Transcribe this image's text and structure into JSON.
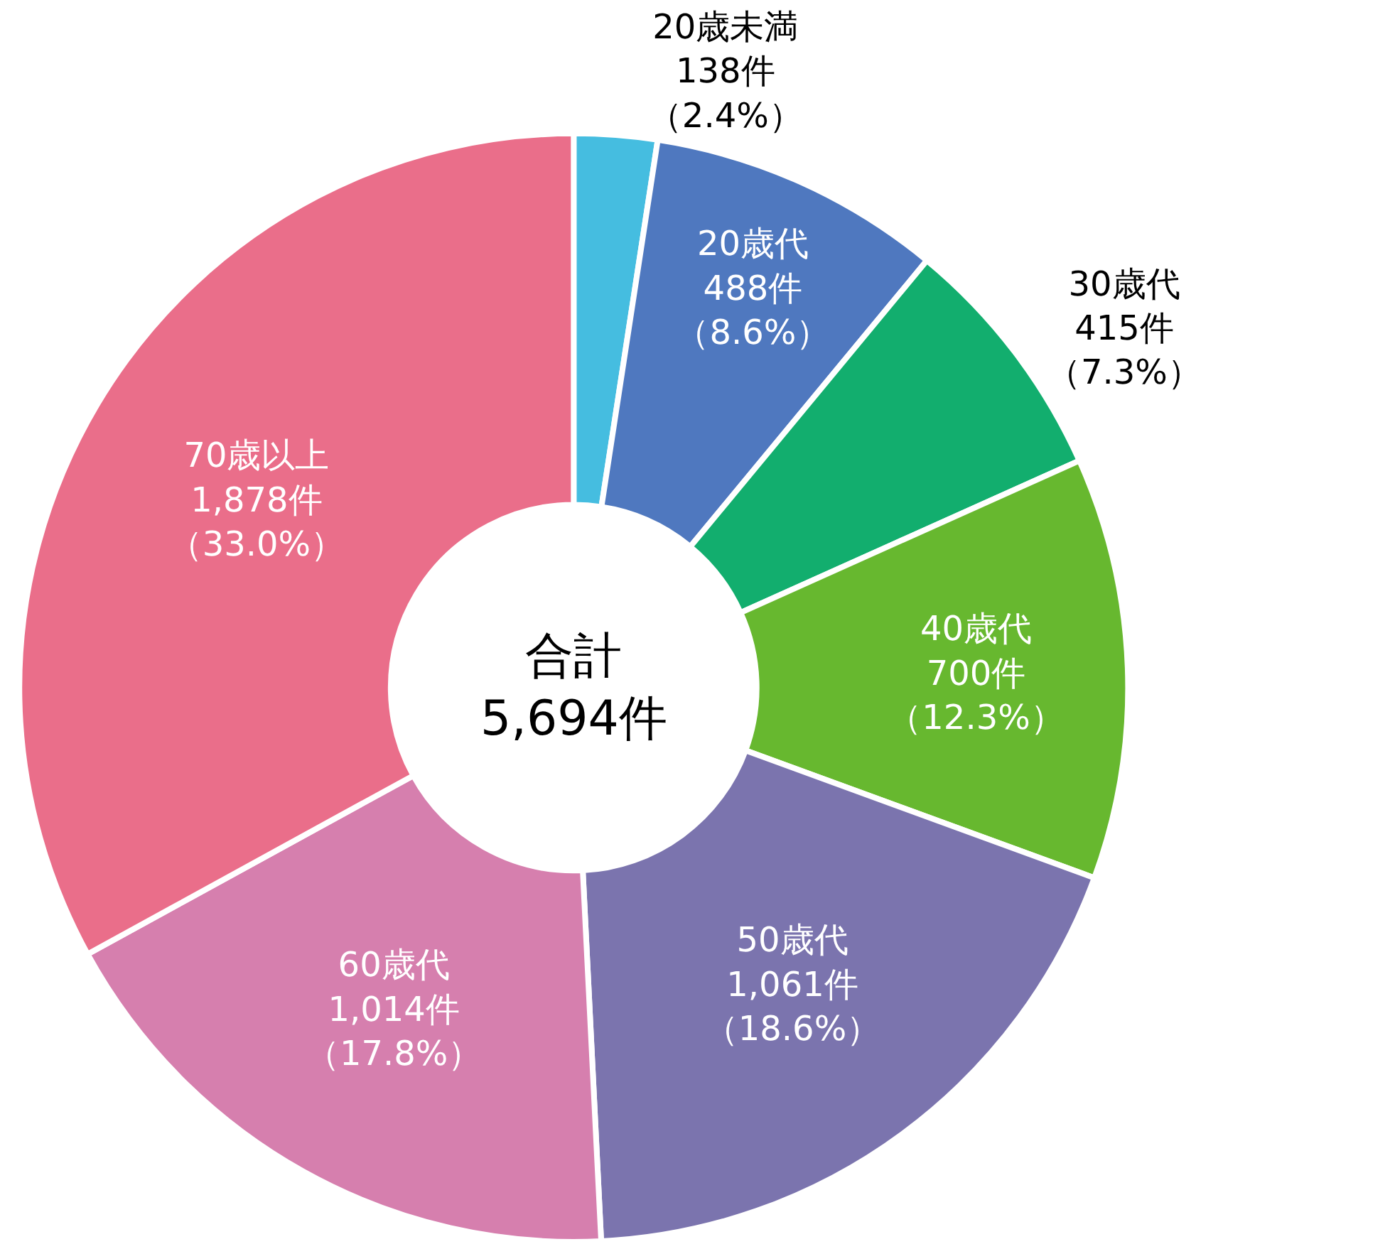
{
  "chart_data": {
    "type": "donut",
    "categories": [
      "20歳未満",
      "20歳代",
      "30歳代",
      "40歳代",
      "50歳代",
      "60歳代",
      "70歳以上"
    ],
    "values": [
      138,
      488,
      415,
      700,
      1061,
      1014,
      1878
    ],
    "colors": [
      "#45bde0",
      "#4f78bf",
      "#12ae6e",
      "#67b82f",
      "#7b74ae",
      "#d67fae",
      "#ea6e8a"
    ],
    "value_labels": [
      "138件（2.4%）",
      "488件（8.6%）",
      "415件（7.3%）",
      "700件（12.3%）",
      "1,061件（18.6%）",
      "1,014件（17.8%）",
      "1,878件（33.0%）"
    ],
    "annotations": [
      "合計\n5,694件"
    ],
    "legend": false
  }
}
